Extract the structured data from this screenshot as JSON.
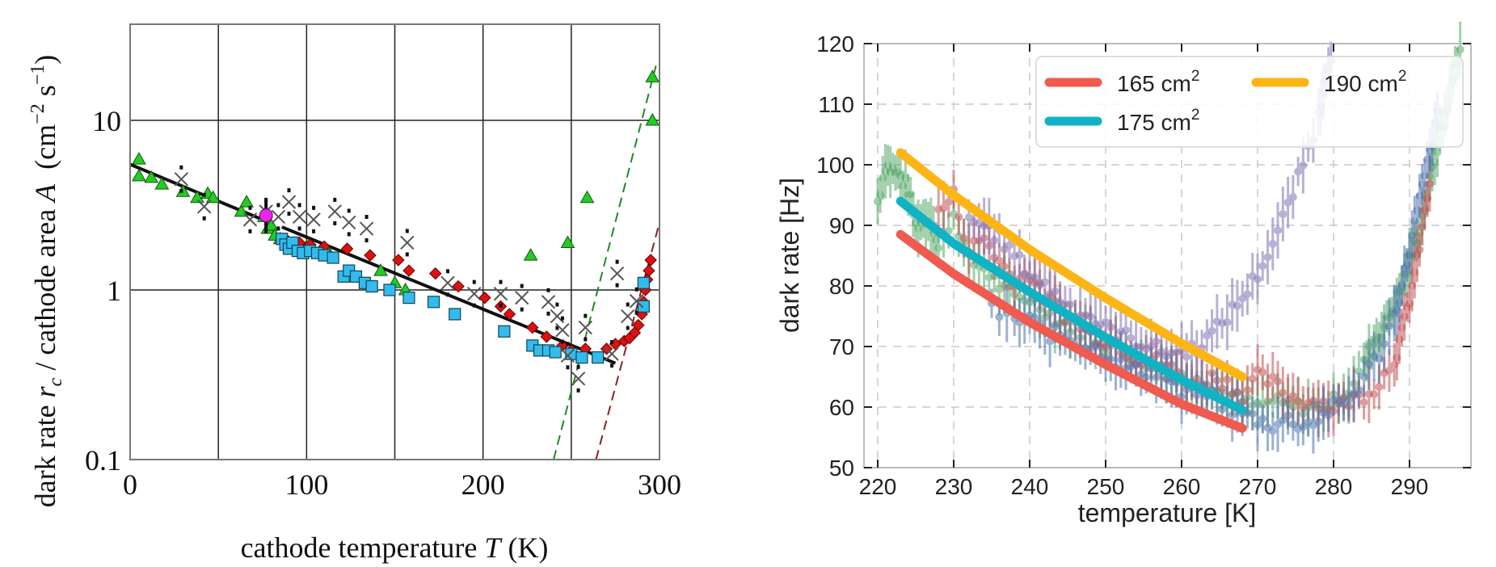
{
  "chart_data": [
    {
      "type": "scatter",
      "title": "",
      "xlabel": "cathode temperature T (K)",
      "ylabel": "dark rate r_c / cathode area A (cm^-2 s^-1)",
      "xlabel_parts": {
        "text": "cathode temperature ",
        "var": "T",
        "unit": " (K)"
      },
      "ylabel_parts": {
        "pre": "dark rate ",
        "var1": "r",
        "sub1": "c",
        "mid": " / cathode area ",
        "var2": "A",
        "unit_pre": "  (cm",
        "sup1": "−2",
        "unit_mid": " s",
        "sup2": "−1",
        "unit_post": ")"
      },
      "xlim": [
        0,
        300
      ],
      "ylim": [
        0.1,
        37
      ],
      "yscale": "log",
      "grid": true,
      "x_ticks": [
        0,
        100,
        200,
        300
      ],
      "x_tick_labels": [
        "0",
        "100",
        "200",
        "300"
      ],
      "x_grid": [
        0,
        50,
        100,
        150,
        200,
        250,
        300
      ],
      "y_ticks": [
        0.1,
        1,
        10
      ],
      "y_tick_labels": [
        "0.1",
        "1",
        "10"
      ],
      "series": [
        {
          "name": "green-triangles",
          "marker": "triangle",
          "color": "#22cc22",
          "points": [
            [
              5,
              5.9
            ],
            [
              5,
              4.7
            ],
            [
              12,
              4.6
            ],
            [
              18,
              4.2
            ],
            [
              30,
              3.8
            ],
            [
              38,
              3.5
            ],
            [
              44,
              3.7
            ],
            [
              47,
              3.5
            ],
            [
              63,
              2.9
            ],
            [
              66,
              3.3
            ],
            [
              76,
              2.7
            ],
            [
              78,
              2.3
            ],
            [
              80,
              2.4
            ],
            [
              82,
              2.1
            ],
            [
              85,
              2.0
            ],
            [
              90,
              1.9
            ],
            [
              100,
              1.8
            ],
            [
              112,
              1.7
            ],
            [
              142,
              1.3
            ],
            [
              150,
              1.1
            ],
            [
              156,
              1.0
            ],
            [
              227,
              1.6
            ],
            [
              248,
              1.9
            ],
            [
              259,
              3.5
            ],
            [
              296,
              18.0
            ],
            [
              296,
              10.0
            ]
          ]
        },
        {
          "name": "red-diamonds",
          "marker": "diamond",
          "color": "#dd1111",
          "points": [
            [
              88,
              2.0
            ],
            [
              96,
              1.9
            ],
            [
              102,
              1.85
            ],
            [
              110,
              1.8
            ],
            [
              123,
              1.75
            ],
            [
              136,
              1.6
            ],
            [
              152,
              1.5
            ],
            [
              158,
              1.3
            ],
            [
              173,
              1.25
            ],
            [
              186,
              1.05
            ],
            [
              201,
              0.9
            ],
            [
              210,
              0.8
            ],
            [
              215,
              0.72
            ],
            [
              228,
              0.6
            ],
            [
              236,
              0.53
            ],
            [
              245,
              0.47
            ],
            [
              250,
              0.44
            ],
            [
              258,
              0.45
            ],
            [
              270,
              0.45
            ],
            [
              275,
              0.48
            ],
            [
              280,
              0.5
            ],
            [
              283,
              0.52
            ],
            [
              286,
              0.56
            ],
            [
              288,
              0.62
            ],
            [
              290,
              0.72
            ],
            [
              291,
              0.85
            ],
            [
              292,
              1.0
            ],
            [
              293,
              1.15
            ],
            [
              294,
              1.3
            ],
            [
              295,
              1.5
            ]
          ]
        },
        {
          "name": "blue-squares",
          "marker": "square",
          "color": "#33bbee",
          "points": [
            [
              86,
              2.0
            ],
            [
              88,
              1.85
            ],
            [
              90,
              1.75
            ],
            [
              92,
              1.9
            ],
            [
              95,
              1.7
            ],
            [
              98,
              1.65
            ],
            [
              102,
              1.7
            ],
            [
              106,
              1.65
            ],
            [
              110,
              1.6
            ],
            [
              115,
              1.55
            ],
            [
              121,
              1.2
            ],
            [
              124,
              1.3
            ],
            [
              128,
              1.2
            ],
            [
              133,
              1.1
            ],
            [
              137,
              1.05
            ],
            [
              147,
              1.0
            ],
            [
              158,
              0.9
            ],
            [
              172,
              0.85
            ],
            [
              184,
              0.72
            ],
            [
              212,
              0.57
            ],
            [
              228,
              0.47
            ],
            [
              232,
              0.44
            ],
            [
              237,
              0.44
            ],
            [
              241,
              0.43
            ],
            [
              250,
              0.42
            ],
            [
              256,
              0.4
            ],
            [
              265,
              0.4
            ],
            [
              291,
              0.8
            ],
            [
              291,
              1.1
            ]
          ]
        },
        {
          "name": "black-crosses",
          "marker": "x",
          "color": "#555555",
          "points": [
            [
              29,
              4.5
            ],
            [
              42,
              3.1
            ],
            [
              68,
              2.6
            ],
            [
              77,
              2.9
            ],
            [
              84,
              2.7
            ],
            [
              90,
              3.3
            ],
            [
              96,
              2.7
            ],
            [
              104,
              2.6
            ],
            [
              116,
              2.9
            ],
            [
              124,
              2.5
            ],
            [
              134,
              2.3
            ],
            [
              157,
              1.9
            ],
            [
              180,
              1.1
            ],
            [
              195,
              0.95
            ],
            [
              210,
              0.95
            ],
            [
              222,
              0.9
            ],
            [
              237,
              0.85
            ],
            [
              242,
              0.7
            ],
            [
              245,
              0.58
            ],
            [
              248,
              0.41
            ],
            [
              254,
              0.3
            ],
            [
              258,
              0.6
            ],
            [
              273,
              0.42
            ],
            [
              276,
              1.25
            ],
            [
              282,
              0.7
            ],
            [
              287,
              0.86
            ]
          ]
        },
        {
          "name": "magenta-circle",
          "marker": "circle",
          "color": "#ee22ee",
          "points": [
            [
              77,
              2.75
            ]
          ]
        }
      ],
      "lines": [
        {
          "name": "fit-low-T",
          "style": "solid",
          "color": "#111111",
          "from": [
            0,
            5.5
          ],
          "to": [
            75,
            2.6
          ]
        },
        {
          "name": "fit-mid-T",
          "style": "solid",
          "color": "#111111",
          "from": [
            86,
            2.35
          ],
          "to": [
            275,
            0.37
          ]
        },
        {
          "name": "fit-green-dashed",
          "style": "dashed",
          "color": "#228822",
          "from": [
            240,
            0.1
          ],
          "to": [
            298,
            21
          ]
        },
        {
          "name": "fit-red-dashed",
          "style": "dashed",
          "color": "#882222",
          "from": [
            264,
            0.1
          ],
          "to": [
            300,
            2.5
          ]
        }
      ]
    },
    {
      "type": "line",
      "title": "",
      "xlabel": "temperature [K]",
      "ylabel": "dark rate [Hz]",
      "xlim": [
        218.2,
        298.2
      ],
      "ylim": [
        50,
        120
      ],
      "grid": true,
      "x_ticks": [
        220,
        230,
        240,
        250,
        260,
        270,
        280,
        290
      ],
      "x_tick_labels": [
        "220",
        "230",
        "240",
        "250",
        "260",
        "270",
        "280",
        "290"
      ],
      "y_ticks": [
        50,
        60,
        70,
        80,
        90,
        100,
        110,
        120
      ],
      "y_tick_labels": [
        "50",
        "60",
        "70",
        "80",
        "90",
        "100",
        "110",
        "120"
      ],
      "legend": {
        "placement": "top-right",
        "columns": 2,
        "entries": [
          {
            "label": "165 cm",
            "sup": "2",
            "color": "#f05a4f"
          },
          {
            "label": "175 cm",
            "sup": "2",
            "color": "#10b3c4"
          },
          {
            "label": "190 cm",
            "sup": "2",
            "color": "#fdb515"
          }
        ]
      },
      "series": [
        {
          "name": "165 cm2",
          "color": "#f05a4f",
          "x": [
            223,
            230,
            240,
            250,
            260,
            268
          ],
          "y": [
            88.5,
            82.0,
            74.0,
            67.0,
            60.5,
            56.5
          ]
        },
        {
          "name": "175 cm2",
          "color": "#10b3c4",
          "x": [
            223,
            230,
            240,
            250,
            260,
            268
          ],
          "y": [
            94.0,
            87.0,
            79.0,
            71.5,
            64.5,
            59.5
          ]
        },
        {
          "name": "190 cm2",
          "color": "#fdb515",
          "x": [
            223,
            230,
            240,
            250,
            260,
            268
          ],
          "y": [
            102.0,
            95.0,
            86.0,
            78.0,
            70.5,
            65.0
          ]
        }
      ],
      "data_sets": [
        {
          "name": "green-data",
          "color": "#55a868",
          "x": [
            220,
            221,
            222,
            223,
            224,
            225,
            226,
            227,
            228,
            230,
            232,
            234,
            236,
            238,
            240,
            242,
            244,
            246,
            248,
            250,
            252,
            254,
            256,
            258,
            260,
            262,
            264,
            266,
            268,
            270,
            272,
            274,
            276,
            278,
            280,
            282,
            284,
            285,
            286,
            287,
            288,
            289,
            290,
            291,
            292,
            293,
            294,
            295,
            296,
            297
          ],
          "y": [
            94,
            100,
            99,
            98,
            96,
            90,
            91,
            91,
            86,
            92,
            84,
            83,
            80,
            78,
            78,
            76,
            74,
            73,
            72,
            70,
            70,
            68,
            67,
            66,
            65,
            64,
            63,
            62,
            61,
            60,
            61,
            60,
            60,
            60,
            61,
            63,
            67,
            70,
            72,
            74,
            77,
            80,
            84,
            88,
            93,
            99,
            105,
            110,
            116,
            121
          ]
        },
        {
          "name": "red-data",
          "color": "#c44e52",
          "x": [
            228,
            230,
            232,
            234,
            236,
            238,
            240,
            242,
            244,
            246,
            248,
            250,
            252,
            254,
            256,
            258,
            260,
            262,
            264,
            266,
            268,
            270,
            272,
            274,
            276,
            278,
            280,
            282,
            284,
            286,
            288,
            289,
            290,
            291,
            292,
            293
          ],
          "y": [
            92,
            95,
            86,
            88,
            84,
            81,
            82,
            78,
            76,
            74,
            72,
            71,
            70,
            68,
            68,
            67,
            65,
            64,
            65,
            64,
            62,
            65,
            64,
            62,
            61,
            61,
            60,
            61,
            62,
            64,
            68,
            72,
            78,
            84,
            92,
            100
          ]
        },
        {
          "name": "blue-data",
          "color": "#4c72b0",
          "x": [
            235,
            238,
            240,
            242,
            244,
            246,
            248,
            250,
            252,
            254,
            256,
            258,
            260,
            262,
            264,
            266,
            268,
            270,
            272,
            274,
            276,
            278,
            280,
            282,
            284,
            286,
            288,
            289,
            290,
            291,
            292,
            293,
            294
          ],
          "y": [
            76,
            74,
            75,
            72,
            72,
            71,
            70,
            69,
            67,
            66,
            66,
            65,
            62,
            63,
            62,
            60,
            59,
            58,
            57,
            58,
            57,
            58,
            60,
            61,
            65,
            69,
            75,
            80,
            86,
            92,
            98,
            104,
            110
          ]
        },
        {
          "name": "purple-data",
          "color": "#8172b2",
          "x": [
            232,
            234,
            236,
            238,
            240,
            242,
            244,
            246,
            248,
            250,
            252,
            254,
            256,
            258,
            260,
            262,
            264,
            266,
            268,
            270,
            272,
            274,
            276,
            278,
            279,
            280
          ],
          "y": [
            91,
            90,
            88,
            85,
            82,
            80,
            78,
            76,
            75,
            73,
            72,
            71,
            70,
            69,
            69,
            70,
            72,
            75,
            78,
            82,
            87,
            93,
            100,
            108,
            115,
            120
          ]
        }
      ]
    }
  ]
}
